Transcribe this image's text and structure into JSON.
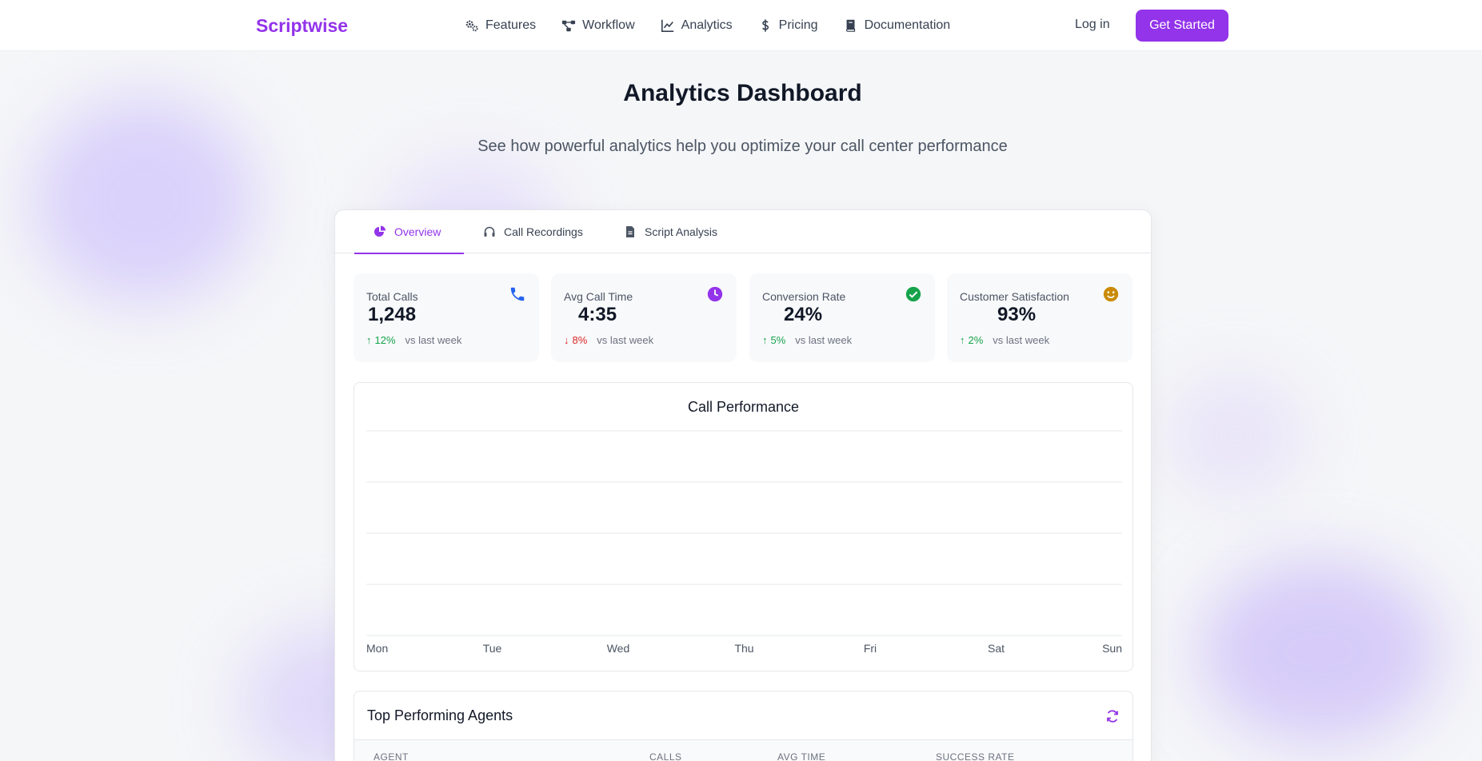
{
  "nav": {
    "logo": "Scriptwise",
    "links": [
      {
        "label": "Features",
        "icon": "gears-icon"
      },
      {
        "label": "Workflow",
        "icon": "workflow-icon"
      },
      {
        "label": "Analytics",
        "icon": "chart-line-icon"
      },
      {
        "label": "Pricing",
        "icon": "dollar-icon"
      },
      {
        "label": "Documentation",
        "icon": "book-icon"
      }
    ],
    "login": "Log in",
    "cta": "Get Started"
  },
  "header": {
    "title": "Analytics Dashboard",
    "subtitle": "See how powerful analytics help you optimize your call center performance"
  },
  "tabs": [
    {
      "label": "Overview",
      "icon": "pie-chart-icon",
      "active": true
    },
    {
      "label": "Call Recordings",
      "icon": "headset-icon",
      "active": false
    },
    {
      "label": "Script Analysis",
      "icon": "document-icon",
      "active": false
    }
  ],
  "stats": [
    {
      "label": "Total Calls",
      "value": "1,248",
      "trend": "12%",
      "direction": "up",
      "note": "vs last week",
      "icon": "phone-icon",
      "icon_color": "#2563eb"
    },
    {
      "label": "Avg Call Time",
      "value": "4:35",
      "trend": "8%",
      "direction": "down",
      "note": "vs last week",
      "icon": "clock-icon",
      "icon_color": "#9333ea"
    },
    {
      "label": "Conversion Rate",
      "value": "24%",
      "trend": "5%",
      "direction": "up",
      "note": "vs last week",
      "icon": "check-circle-icon",
      "icon_color": "#16a34a"
    },
    {
      "label": "Customer Satisfaction",
      "value": "93%",
      "trend": "2%",
      "direction": "up",
      "note": "vs last week",
      "icon": "smile-icon",
      "icon_color": "#ca8a04"
    }
  ],
  "chart_data": {
    "type": "line",
    "title": "Call Performance",
    "categories": [
      "Mon",
      "Tue",
      "Wed",
      "Thu",
      "Fri",
      "Sat",
      "Sun"
    ],
    "series": [],
    "grid": true,
    "gridlines": 5
  },
  "agents": {
    "title": "Top Performing Agents",
    "columns": [
      "AGENT",
      "CALLS",
      "AVG TIME",
      "SUCCESS RATE"
    ]
  },
  "colors": {
    "accent": "#9333ea",
    "up": "#16a34a",
    "down": "#dc2626"
  }
}
